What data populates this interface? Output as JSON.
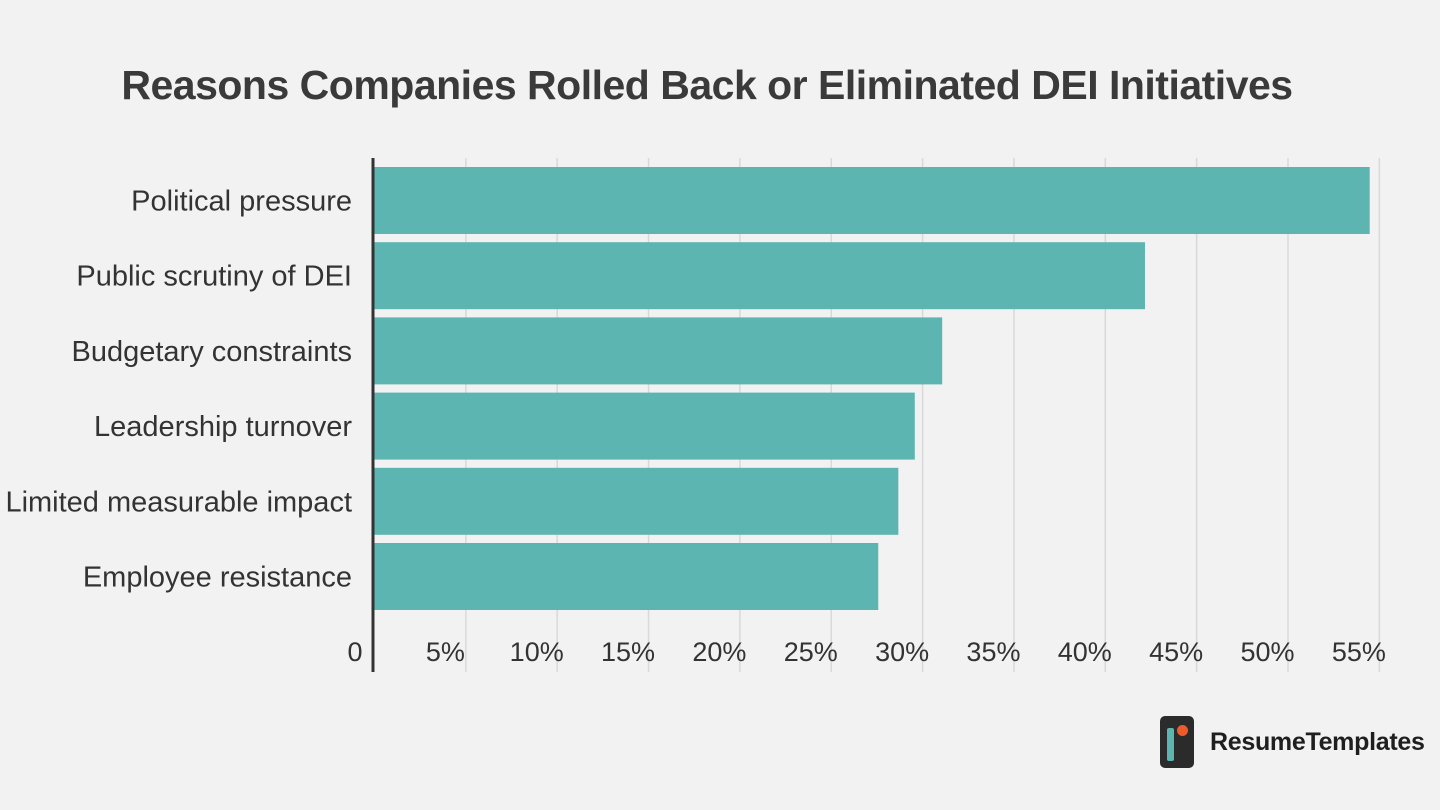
{
  "chart_data": {
    "type": "bar",
    "orientation": "horizontal",
    "title": "Reasons Companies Rolled Back or Eliminated DEI Initiatives",
    "categories": [
      "Political pressure",
      "Public scrutiny of DEI",
      "Budgetary constraints",
      "Leadership turnover",
      "Limited measurable impact",
      "Employee resistance"
    ],
    "values": [
      54.5,
      42.2,
      31.1,
      29.6,
      28.7,
      27.6
    ],
    "xlim": [
      0,
      55
    ],
    "xticks": [
      0,
      5,
      10,
      15,
      20,
      25,
      30,
      35,
      40,
      45,
      50,
      55
    ],
    "xtick_labels": [
      "0",
      "5%",
      "10%",
      "15%",
      "20%",
      "25%",
      "30%",
      "35%",
      "40%",
      "45%",
      "50%",
      "55%"
    ],
    "xlabel": "",
    "ylabel": "",
    "grid": "vertical",
    "bar_color": "#5db5b1"
  },
  "brand": {
    "name": "ResumeTemplates",
    "logo_icon": "resume-templates-logo-icon",
    "logo_colors": {
      "body": "#2b2b2b",
      "bar": "#5db5b1",
      "dot": "#ef5a2b"
    }
  }
}
